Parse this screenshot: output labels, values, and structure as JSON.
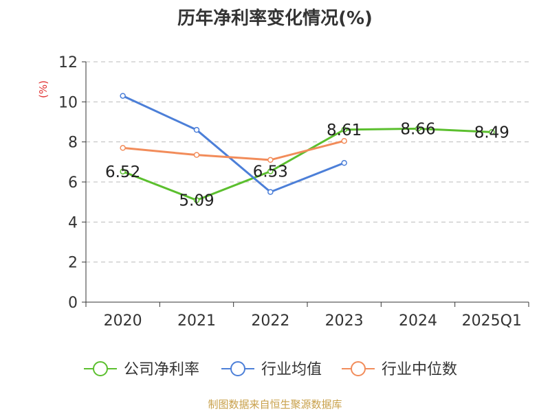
{
  "title": "历年净利率变化情况(%)",
  "source": "制图数据来自恒生聚源数据库",
  "chart_data": {
    "type": "line",
    "categories": [
      "2020",
      "2021",
      "2022",
      "2023",
      "2024",
      "2025Q1"
    ],
    "ylabel": "(%)",
    "ylim": [
      0,
      12
    ],
    "yticks": [
      0,
      2,
      4,
      6,
      8,
      10,
      12
    ],
    "grid": true,
    "legend_position": "bottom",
    "series": [
      {
        "name": "公司净利率",
        "color": "#5bbf2e",
        "values": [
          6.52,
          5.09,
          6.53,
          8.61,
          8.66,
          8.49
        ],
        "labels": [
          "6.52",
          "5.09",
          "6.53",
          "8.61",
          "8.66",
          "8.49"
        ]
      },
      {
        "name": "行业均值",
        "color": "#4c7fd8",
        "values": [
          10.3,
          8.6,
          5.5,
          6.95,
          null,
          null
        ]
      },
      {
        "name": "行业中位数",
        "color": "#f28c5a",
        "values": [
          7.7,
          7.35,
          7.1,
          8.05,
          null,
          null
        ]
      }
    ]
  }
}
